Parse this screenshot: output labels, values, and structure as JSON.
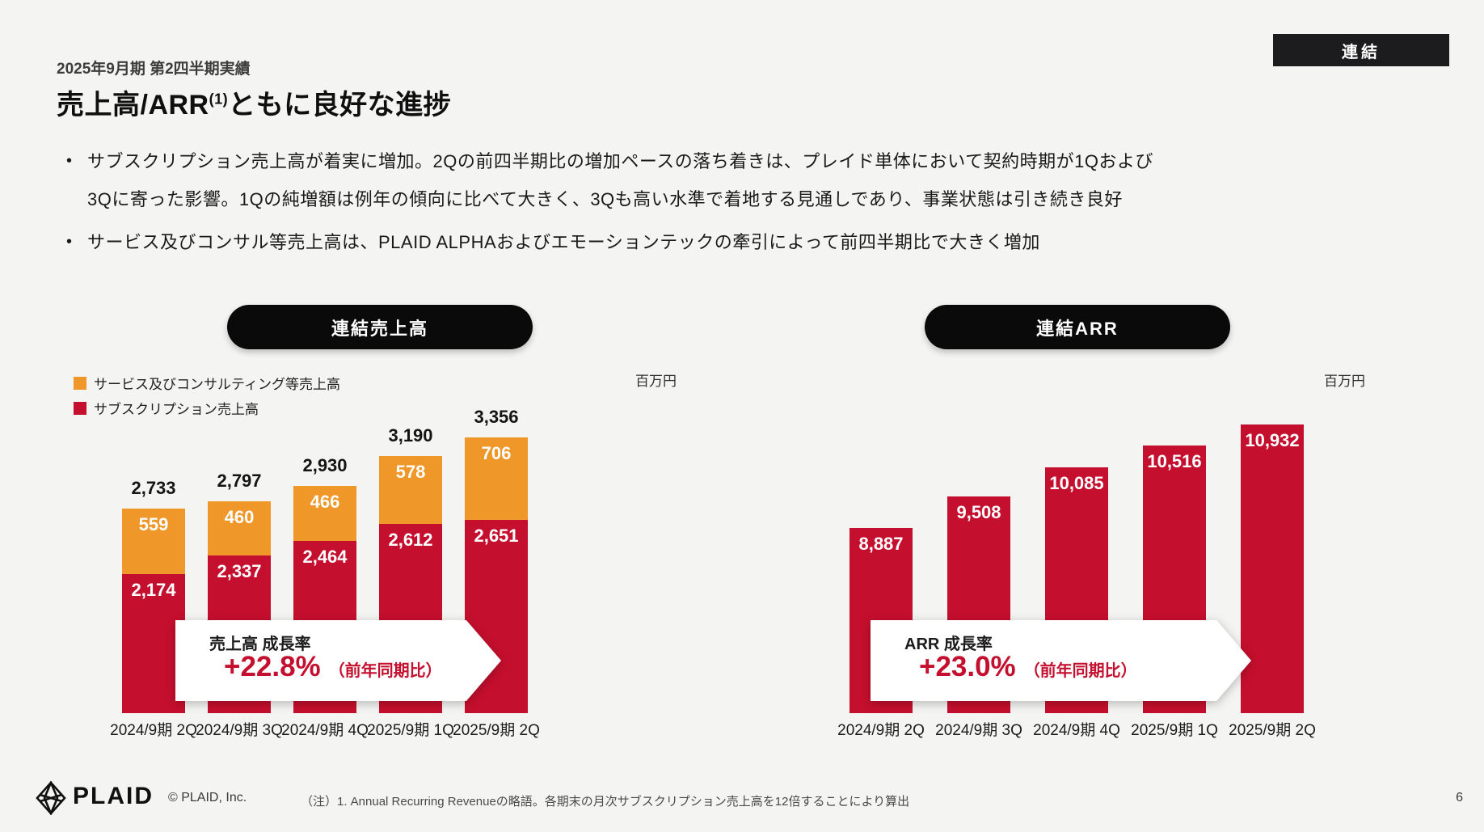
{
  "page": {
    "badge": "連結",
    "kicker": "2025年9月期 第2四半期実績",
    "title_prefix": "売上高/ARR",
    "title_sup": "(1)",
    "title_suffix": "ともに良好な進捗",
    "bullets": [
      "サブスクリプション売上高が着実に増加。2Qの前四半期比の増加ペースの落ち着きは、プレイド単体において契約時期が1Qおよび3Qに寄った影響。1Qの純増額は例年の傾向に比べて大きく、3Qも高い水準で着地する見通しであり、事業状態は引き続き良好",
      "サービス及びコンサル等売上高は、PLAID ALPHAおよびエモーションテックの牽引によって前四半期比で大きく増加"
    ],
    "footer": {
      "logo_text": "PLAID",
      "copyright": "© PLAID, Inc.",
      "note": "（注）1. Annual Recurring Revenueの略語。各期末の月次サブスクリプション売上高を12倍することにより算出",
      "page_number": "6"
    }
  },
  "colors": {
    "background": "#f4f4f3",
    "subscription_red": "#c50f2e",
    "service_orange": "#ef9728",
    "growth_red": "#c50f2e",
    "pill_black": "#0a0a0a"
  },
  "chart_data": [
    {
      "type": "bar",
      "stacked": true,
      "title": "連結売上高",
      "unit": "百万円",
      "y_axis_truncated": true,
      "grid": false,
      "categories": [
        "2024/9期 2Q",
        "2024/9期 3Q",
        "2024/9期 4Q",
        "2025/9期 1Q",
        "2025/9期 2Q"
      ],
      "series": [
        {
          "name": "サブスクリプション売上高",
          "color_key": "subscription_red",
          "values": [
            2174,
            2337,
            2464,
            2612,
            2651
          ]
        },
        {
          "name": "サービス及びコンサルティング等売上高",
          "color_key": "service_orange",
          "values": [
            559,
            460,
            466,
            578,
            706
          ]
        }
      ],
      "totals": [
        2733,
        2797,
        2930,
        3190,
        3356
      ],
      "legend": [
        {
          "label": "サービス及びコンサルティング等売上高",
          "color_key": "service_orange"
        },
        {
          "label": "サブスクリプション売上高",
          "color_key": "subscription_red"
        }
      ],
      "growth_callout": {
        "label": "売上高 成長率",
        "value": "+22.8%",
        "basis": "（前年同期比）"
      }
    },
    {
      "type": "bar",
      "stacked": false,
      "title": "連結ARR",
      "unit": "百万円",
      "y_axis_truncated": true,
      "grid": false,
      "categories": [
        "2024/9期 2Q",
        "2024/9期 3Q",
        "2024/9期 4Q",
        "2025/9期 1Q",
        "2025/9期 2Q"
      ],
      "series": [
        {
          "name": "ARR",
          "color_key": "subscription_red",
          "values": [
            8887,
            9508,
            10085,
            10516,
            10932
          ]
        }
      ],
      "growth_callout": {
        "label": "ARR 成長率",
        "value": "+23.0%",
        "basis": "（前年同期比）"
      }
    }
  ]
}
